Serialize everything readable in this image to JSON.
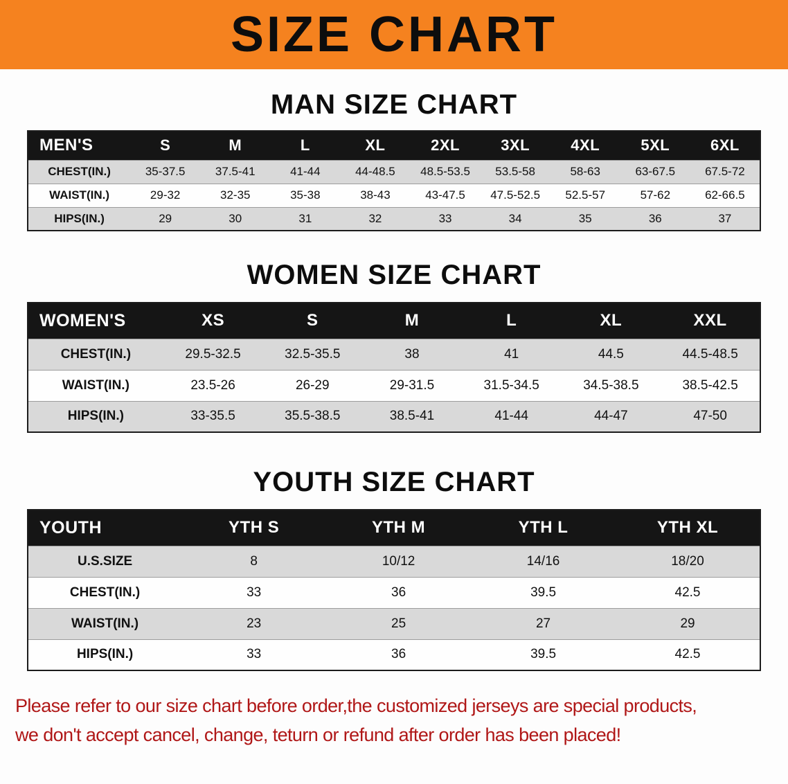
{
  "banner": {
    "title": "SIZE CHART"
  },
  "man": {
    "heading": "MAN SIZE CHART",
    "header": [
      "MEN'S",
      "S",
      "M",
      "L",
      "XL",
      "2XL",
      "3XL",
      "4XL",
      "5XL",
      "6XL"
    ],
    "rows": [
      [
        "CHEST(IN.)",
        "35-37.5",
        "37.5-41",
        "41-44",
        "44-48.5",
        "48.5-53.5",
        "53.5-58",
        "58-63",
        "63-67.5",
        "67.5-72"
      ],
      [
        "WAIST(IN.)",
        "29-32",
        "32-35",
        "35-38",
        "38-43",
        "43-47.5",
        "47.5-52.5",
        "52.5-57",
        "57-62",
        "62-66.5"
      ],
      [
        "HIPS(IN.)",
        "29",
        "30",
        "31",
        "32",
        "33",
        "34",
        "35",
        "36",
        "37"
      ]
    ]
  },
  "women": {
    "heading": "WOMEN SIZE CHART",
    "header": [
      "WOMEN'S",
      "XS",
      "S",
      "M",
      "L",
      "XL",
      "XXL"
    ],
    "rows": [
      [
        "CHEST(IN.)",
        "29.5-32.5",
        "32.5-35.5",
        "38",
        "41",
        "44.5",
        "44.5-48.5"
      ],
      [
        "WAIST(IN.)",
        "23.5-26",
        "26-29",
        "29-31.5",
        "31.5-34.5",
        "34.5-38.5",
        "38.5-42.5"
      ],
      [
        "HIPS(IN.)",
        "33-35.5",
        "35.5-38.5",
        "38.5-41",
        "41-44",
        "44-47",
        "47-50"
      ]
    ]
  },
  "youth": {
    "heading": "YOUTH SIZE CHART",
    "header": [
      "YOUTH",
      "YTH S",
      "YTH M",
      "YTH L",
      "YTH XL"
    ],
    "rows": [
      [
        "U.S.SIZE",
        "8",
        "10/12",
        "14/16",
        "18/20"
      ],
      [
        "CHEST(IN.)",
        "33",
        "36",
        "39.5",
        "42.5"
      ],
      [
        "WAIST(IN.)",
        "23",
        "25",
        "27",
        "29"
      ],
      [
        "HIPS(IN.)",
        "33",
        "36",
        "39.5",
        "42.5"
      ]
    ]
  },
  "disclaimer": {
    "line1": "Please refer to our size chart before order,the customized jerseys are special products,",
    "line2": "we don't accept cancel, change, teturn or refund after order has been placed!"
  },
  "colors": {
    "banner_bg": "#F5821F",
    "header_bg": "#151515",
    "stripe_row": "#d9d9d9",
    "disclaimer_text": "#b01717"
  }
}
